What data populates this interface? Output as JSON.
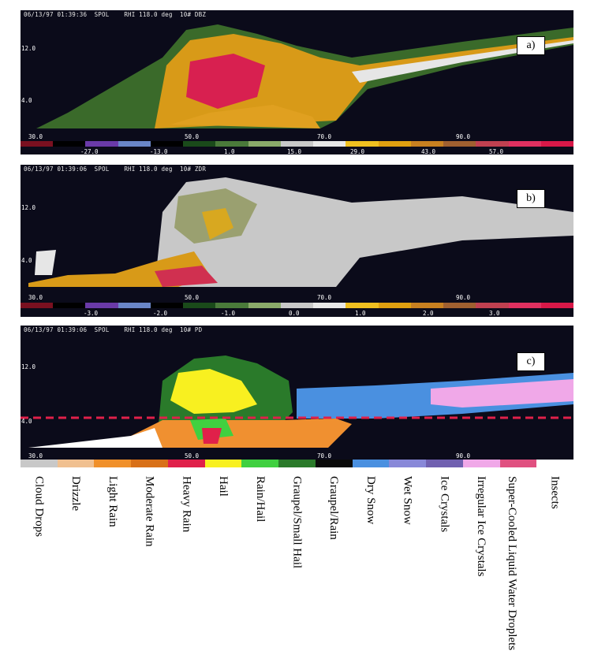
{
  "panels": [
    {
      "header": "06/13/97 01:39:36  SPOL    RHI 118.0 deg  10# DBZ",
      "label": "a)",
      "y_ticks": [
        "12.0",
        "4.0"
      ],
      "x_ticks": [
        "30.0",
        "50.0",
        "70.0",
        "90.0"
      ],
      "colorbar_values": [
        "-27.0",
        "-13.0",
        "1.0",
        "15.0",
        "29.0",
        "43.0",
        "57.0"
      ],
      "colors": [
        "#7a1020",
        "#000000",
        "#6a3aa8",
        "#6a86c8",
        "#000000",
        "#1a4a1a",
        "#4a7a3a",
        "#8aaa6a",
        "#c8c8c8",
        "#e8e8e8",
        "#f0c020",
        "#e0a010",
        "#c88020",
        "#a06030",
        "#c04050",
        "#e03060",
        "#d81848"
      ]
    },
    {
      "header": "06/13/97 01:39:06  SPOL    RHI 118.0 deg  10# ZDR",
      "label": "b)",
      "y_ticks": [
        "12.0",
        "4.0"
      ],
      "x_ticks": [
        "30.0",
        "50.0",
        "70.0",
        "90.0"
      ],
      "colorbar_values": [
        "-3.0",
        "-2.0",
        "-1.0",
        "0.0",
        "1.0",
        "2.0",
        "3.0"
      ],
      "colors": [
        "#7a1020",
        "#000000",
        "#6a3aa8",
        "#6a86c8",
        "#000000",
        "#1a4a1a",
        "#4a7a3a",
        "#8aaa6a",
        "#c8c8c8",
        "#e8e8e8",
        "#f0c020",
        "#e0a010",
        "#c88020",
        "#a06030",
        "#c04050",
        "#e03060",
        "#d81848"
      ]
    },
    {
      "header": "06/13/97 01:39:06  SPOL    RHI 118.0 deg  10# PD",
      "label": "c)",
      "y_ticks": [
        "12.0",
        "4.0"
      ],
      "x_ticks": [
        "30.0",
        "50.0",
        "70.0",
        "90.0"
      ]
    }
  ],
  "classes": [
    {
      "name": "Cloud Drops",
      "color": "#c8c8c8"
    },
    {
      "name": "Drizzle",
      "color": "#f0c090"
    },
    {
      "name": "Light Rain",
      "color": "#f0902a"
    },
    {
      "name": "Moderate Rain",
      "color": "#d87018"
    },
    {
      "name": "Heavy Rain",
      "color": "#e0204a"
    },
    {
      "name": "Hail",
      "color": "#f8f020"
    },
    {
      "name": "Rain/Hail",
      "color": "#40d040"
    },
    {
      "name": "Graupel/Small Hail",
      "color": "#2a7a2a"
    },
    {
      "name": "Graupel/Rain",
      "color": "#0a0a0a"
    },
    {
      "name": "Dry Snow",
      "color": "#4a90e0"
    },
    {
      "name": "Wet Snow",
      "color": "#8888d8"
    },
    {
      "name": "Ice Crystals",
      "color": "#7060b0"
    },
    {
      "name": "Irregular Ice Crystals",
      "color": "#f0a8e8"
    },
    {
      "name": "Super-Cooled Liquid Water Droplets",
      "color": "#e05080"
    },
    {
      "name": "Insects",
      "color": "#ffffff"
    }
  ]
}
